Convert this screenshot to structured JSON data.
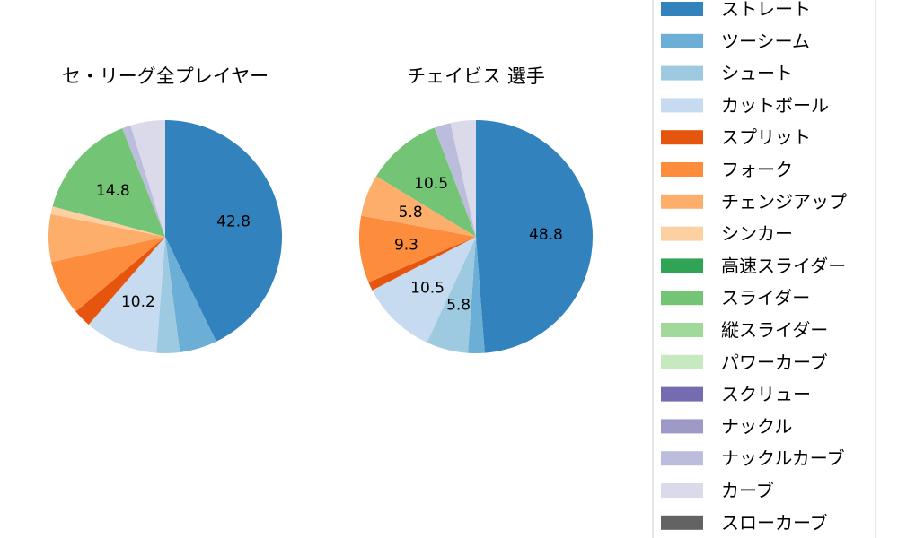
{
  "chart_data": [
    {
      "type": "pie",
      "title": "セ・リーグ全プレイヤー",
      "slices": [
        {
          "label": "ストレート",
          "value": 42.8,
          "shown": "42.8"
        },
        {
          "label": "ツーシーム",
          "value": 5.2
        },
        {
          "label": "シュート",
          "value": 3.2
        },
        {
          "label": "カットボール",
          "value": 10.2,
          "shown": "10.2"
        },
        {
          "label": "スプリット",
          "value": 2.5
        },
        {
          "label": "フォーク",
          "value": 7.6
        },
        {
          "label": "チェンジアップ",
          "value": 6.6
        },
        {
          "label": "シンカー",
          "value": 1.1
        },
        {
          "label": "高速スライダー",
          "value": 0.0
        },
        {
          "label": "スライダー",
          "value": 14.8,
          "shown": "14.8"
        },
        {
          "label": "縦スライダー",
          "value": 0.0
        },
        {
          "label": "パワーカーブ",
          "value": 0.0
        },
        {
          "label": "スクリュー",
          "value": 0.0
        },
        {
          "label": "ナックル",
          "value": 0.0
        },
        {
          "label": "ナックルカーブ",
          "value": 1.2
        },
        {
          "label": "カーブ",
          "value": 4.8
        },
        {
          "label": "スローカーブ",
          "value": 0.0
        }
      ]
    },
    {
      "type": "pie",
      "title": "チェイビス 選手",
      "slices": [
        {
          "label": "ストレート",
          "value": 48.8,
          "shown": "48.8"
        },
        {
          "label": "ツーシーム",
          "value": 2.3
        },
        {
          "label": "シュート",
          "value": 5.8,
          "shown": "5.8"
        },
        {
          "label": "カットボール",
          "value": 10.5,
          "shown": "10.5"
        },
        {
          "label": "スプリット",
          "value": 1.2
        },
        {
          "label": "フォーク",
          "value": 9.3,
          "shown": "9.3"
        },
        {
          "label": "チェンジアップ",
          "value": 5.8,
          "shown": "5.8"
        },
        {
          "label": "シンカー",
          "value": 0.0
        },
        {
          "label": "高速スライダー",
          "value": 0.0
        },
        {
          "label": "スライダー",
          "value": 10.5,
          "shown": "10.5"
        },
        {
          "label": "縦スライダー",
          "value": 0.0
        },
        {
          "label": "パワーカーブ",
          "value": 0.0
        },
        {
          "label": "スクリュー",
          "value": 0.0
        },
        {
          "label": "ナックル",
          "value": 0.0
        },
        {
          "label": "ナックルカーブ",
          "value": 2.3
        },
        {
          "label": "カーブ",
          "value": 3.5
        },
        {
          "label": "スローカーブ",
          "value": 0.0
        }
      ]
    }
  ],
  "legend": {
    "placement": "right",
    "items": [
      {
        "label": "ストレート",
        "color": "#3182bd"
      },
      {
        "label": "ツーシーム",
        "color": "#6baed6"
      },
      {
        "label": "シュート",
        "color": "#9ecae1"
      },
      {
        "label": "カットボール",
        "color": "#c6dbef"
      },
      {
        "label": "スプリット",
        "color": "#e6550d"
      },
      {
        "label": "フォーク",
        "color": "#fd8d3c"
      },
      {
        "label": "チェンジアップ",
        "color": "#fdae6b"
      },
      {
        "label": "シンカー",
        "color": "#fdd0a2"
      },
      {
        "label": "高速スライダー",
        "color": "#31a354"
      },
      {
        "label": "スライダー",
        "color": "#74c476"
      },
      {
        "label": "縦スライダー",
        "color": "#a1d99b"
      },
      {
        "label": "パワーカーブ",
        "color": "#c7e9c0"
      },
      {
        "label": "スクリュー",
        "color": "#756bb1"
      },
      {
        "label": "ナックル",
        "color": "#9e9ac8"
      },
      {
        "label": "ナックルカーブ",
        "color": "#bcbddc"
      },
      {
        "label": "カーブ",
        "color": "#dadaeb"
      },
      {
        "label": "スローカーブ",
        "color": "#636363"
      }
    ]
  }
}
